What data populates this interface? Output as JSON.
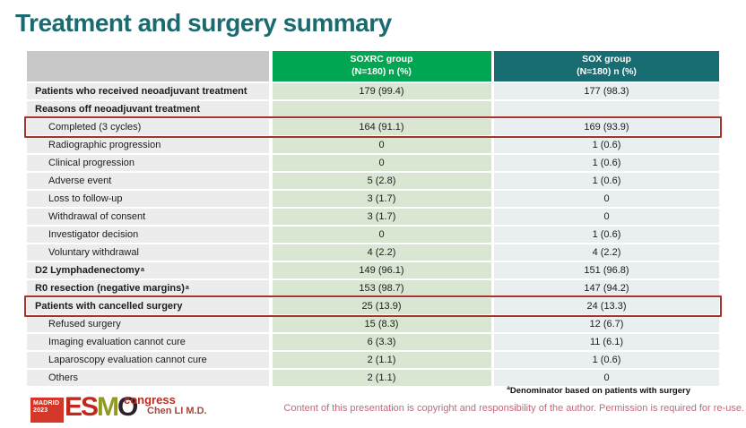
{
  "slide": {
    "title": "Treatment and surgery summary"
  },
  "table": {
    "header": {
      "soxrc_line1": "SOXRC group",
      "soxrc_line2": "(N=180)  n (%)",
      "sox_line1": "SOX group",
      "sox_line2": "(N=180)  n (%)"
    },
    "rows": [
      {
        "label": "Patients who received neoadjuvant treatment",
        "bold": true,
        "indent": false,
        "highlight": false,
        "soxrc": "179 (99.4)",
        "sox": "177 (98.3)"
      },
      {
        "label": "Reasons off neoadjuvant treatment",
        "bold": true,
        "indent": false,
        "highlight": false,
        "soxrc": "",
        "sox": ""
      },
      {
        "label": "Completed (3 cycles)",
        "bold": false,
        "indent": true,
        "highlight": true,
        "soxrc": "164 (91.1)",
        "sox": "169 (93.9)"
      },
      {
        "label": "Radiographic progression",
        "bold": false,
        "indent": true,
        "highlight": false,
        "soxrc": "0",
        "sox": "1 (0.6)"
      },
      {
        "label": "Clinical progression",
        "bold": false,
        "indent": true,
        "highlight": false,
        "soxrc": "0",
        "sox": "1 (0.6)"
      },
      {
        "label": "Adverse event",
        "bold": false,
        "indent": true,
        "highlight": false,
        "soxrc": "5 (2.8)",
        "sox": "1 (0.6)"
      },
      {
        "label": "Loss to follow-up",
        "bold": false,
        "indent": true,
        "highlight": false,
        "soxrc": "3 (1.7)",
        "sox": "0"
      },
      {
        "label": "Withdrawal of consent",
        "bold": false,
        "indent": true,
        "highlight": false,
        "soxrc": "3 (1.7)",
        "sox": "0"
      },
      {
        "label": "Investigator decision",
        "bold": false,
        "indent": true,
        "highlight": false,
        "soxrc": "0",
        "sox": "1 (0.6)"
      },
      {
        "label": "Voluntary withdrawal",
        "bold": false,
        "indent": true,
        "highlight": false,
        "soxrc": "4 (2.2)",
        "sox": "4 (2.2)"
      },
      {
        "label": "D2 Lymphadenectomy",
        "sup": "a",
        "bold": true,
        "indent": false,
        "highlight": false,
        "soxrc": "149 (96.1)",
        "sox": "151 (96.8)"
      },
      {
        "label": "R0 resection (negative margins)",
        "sup": "a",
        "bold": true,
        "indent": false,
        "highlight": false,
        "soxrc": "153 (98.7)",
        "sox": "147 (94.2)"
      },
      {
        "label": "Patients with cancelled surgery",
        "bold": true,
        "indent": false,
        "highlight": true,
        "soxrc": "25 (13.9)",
        "sox": "24 (13.3)"
      },
      {
        "label": "Refused surgery",
        "bold": false,
        "indent": true,
        "highlight": false,
        "soxrc": "15 (8.3)",
        "sox": "12 (6.7)"
      },
      {
        "label": "Imaging evaluation cannot cure",
        "bold": false,
        "indent": true,
        "highlight": false,
        "soxrc": "6 (3.3)",
        "sox": "11 (6.1)"
      },
      {
        "label": "Laparoscopy evaluation cannot cure",
        "bold": false,
        "indent": true,
        "highlight": false,
        "soxrc": "2 (1.1)",
        "sox": "1 (0.6)"
      },
      {
        "label": "Others",
        "bold": false,
        "indent": true,
        "highlight": false,
        "soxrc": "2 (1.1)",
        "sox": "0"
      }
    ]
  },
  "footer": {
    "footnote_sup": "a",
    "footnote_text": "Denominator based on patients with surgery",
    "copyright": "Content of this presentation is copyright and responsibility of the author. Permission is required for re-use.",
    "author": "Chen LI M.D.",
    "logo": {
      "city": "MADRID",
      "year": "2023",
      "esmo_letters": [
        "E",
        "S",
        "M",
        "O"
      ],
      "congress": "congress"
    }
  },
  "colors": {
    "title_teal": "#1a6b70",
    "header_green": "#00a651",
    "header_teal": "#176d72",
    "header_gray": "#c8c8c8",
    "label_cell_bg": "#ececec",
    "soxrc_cell_bg": "#d8e6d2",
    "sox_cell_bg": "#e9eff0",
    "highlight_red": "#a5352a",
    "copyright_rose": "#c4687a",
    "author_red": "#a8443c",
    "logo_red": "#d2372a",
    "logo_olive": "#939b1f",
    "logo_dark": "#29202c"
  }
}
